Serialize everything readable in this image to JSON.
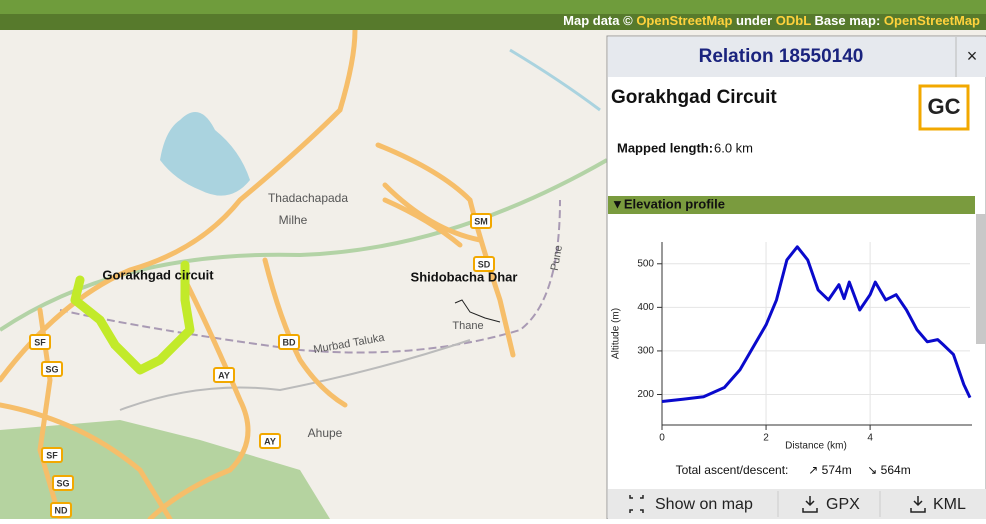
{
  "top_bar": {
    "attribution": {
      "prefix": "Map data ©",
      "osm": "OpenStreetMap",
      "under": "under",
      "license": "ODbL",
      "base_map": "Base map:",
      "base_osm": "OpenStreetMap"
    }
  },
  "map": {
    "labels": [
      "Thadachapada",
      "Milhe",
      "Gorakhgad circuit",
      "Shidobacha Dhar",
      "Ahupe",
      "Murbad Taluka",
      "Pune",
      "Thane"
    ],
    "shields": [
      "SM",
      "SD",
      "BD",
      "AY",
      "AY",
      "SF",
      "SG",
      "SF",
      "SG",
      "ND"
    ]
  },
  "panel": {
    "header": "Relation 18550140",
    "close": "×",
    "title": "Gorakhgad Circuit",
    "logo": "GC",
    "length_label": "Mapped length:",
    "length_value": "6.0 km",
    "section": "▼Elevation profile",
    "ascent_label": "Total ascent/descent:",
    "ascent": "↗ 574m",
    "descent": "↘ 564m",
    "buttons": [
      "Show on map",
      "GPX",
      "KML"
    ]
  },
  "chart_data": {
    "type": "line",
    "x_label": "Distance (km)",
    "y_label": "Altitude (m)",
    "x": [
      0,
      0.4,
      0.8,
      1.2,
      1.5,
      2.0,
      2.2,
      2.4,
      2.6,
      2.8,
      3.0,
      3.2,
      3.4,
      3.5,
      3.6,
      3.8,
      4.0,
      4.1,
      4.3,
      4.5,
      4.7,
      4.9,
      5.1,
      5.3,
      5.4,
      5.6,
      5.8,
      5.92
    ],
    "values": [
      184,
      189,
      195,
      216,
      257,
      360,
      417,
      509,
      539,
      509,
      440,
      417,
      452,
      420,
      458,
      394,
      429,
      458,
      417,
      429,
      394,
      349,
      321,
      326,
      315,
      292,
      223,
      193
    ],
    "color": "#0a0acc",
    "xlim": [
      0,
      5.92
    ],
    "ylim": [
      130,
      550
    ],
    "xticks": [
      0,
      2,
      4
    ],
    "yticks": [
      200,
      300,
      400,
      500
    ],
    "grid": true
  }
}
